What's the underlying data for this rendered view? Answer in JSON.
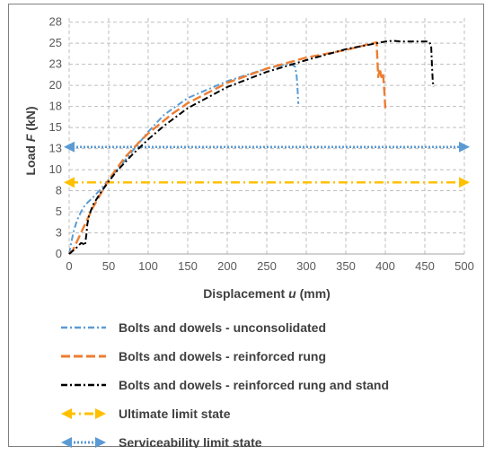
{
  "chart_data": {
    "type": "line",
    "xlabel": "Displacement u (mm)",
    "ylabel": "Load F (kN)",
    "xlabel_parts": {
      "pre": "Displacement ",
      "var": "u",
      "post": " (mm)"
    },
    "ylabel_parts": {
      "pre": "Load ",
      "var": "F",
      "post": " (kN)"
    },
    "xlim": [
      0,
      500
    ],
    "ylim": [
      0,
      28
    ],
    "x_ticks": [
      "0",
      "50",
      "100",
      "150",
      "200",
      "250",
      "300",
      "350",
      "400",
      "450",
      "500"
    ],
    "y_ticks": [
      "0",
      "3",
      "5",
      "8",
      "10",
      "13",
      "15",
      "18",
      "20",
      "23",
      "25",
      "28"
    ],
    "y_tick_values": [
      0,
      2.5,
      5,
      7.5,
      10,
      12.5,
      15,
      17.5,
      20,
      22.5,
      25,
      27.5
    ],
    "grid": true,
    "legend_position": "bottom",
    "series": [
      {
        "name": "Bolts and dowels - unconsolidated",
        "color": "#5b9bd5",
        "style": "dash-dot",
        "x": [
          0,
          3,
          6,
          10,
          15,
          20,
          30,
          40,
          50,
          60,
          80,
          100,
          120,
          150,
          200,
          250,
          280,
          286,
          288,
          289,
          290
        ],
        "y": [
          0,
          1.5,
          2.8,
          4.0,
          5.0,
          5.8,
          6.7,
          7.7,
          8.8,
          9.9,
          12.2,
          14.5,
          16.5,
          18.5,
          20.5,
          22.0,
          22.6,
          22.2,
          21.0,
          19.5,
          17.8
        ]
      },
      {
        "name": "Bolts and dowels - reinforced rung",
        "color": "#ed7d31",
        "style": "long-dash",
        "x": [
          0,
          5,
          10,
          15,
          20,
          30,
          50,
          70,
          90,
          100,
          130,
          150,
          200,
          250,
          300,
          350,
          380,
          389,
          390,
          391,
          393,
          395,
          397,
          399,
          400
        ],
        "y": [
          0,
          0.5,
          1.5,
          2.5,
          3.5,
          5.5,
          8.8,
          11.4,
          13.4,
          14.3,
          16.6,
          17.9,
          20.3,
          22.0,
          23.3,
          24.2,
          24.9,
          25.1,
          23.0,
          21.0,
          22.0,
          21.0,
          21.5,
          19.0,
          17.3
        ]
      },
      {
        "name": "Bolts and dowels - reinforced rung and stand",
        "color": "#000000",
        "style": "dash-dot",
        "x": [
          0,
          10,
          15,
          18,
          20,
          22,
          23,
          25,
          30,
          40,
          50,
          60,
          80,
          100,
          120,
          150,
          200,
          250,
          300,
          350,
          400,
          410,
          420,
          440,
          450,
          455,
          458,
          459,
          460,
          461
        ],
        "y": [
          0,
          0.8,
          1.3,
          1.2,
          1.0,
          2.5,
          3.5,
          4.5,
          5.8,
          7.3,
          8.6,
          9.8,
          11.8,
          13.6,
          15.2,
          17.3,
          19.8,
          21.6,
          23.0,
          24.3,
          25.2,
          25.3,
          25.2,
          25.2,
          25.2,
          25.2,
          24.8,
          22.5,
          20.5,
          19.8
        ]
      },
      {
        "name": "Ultimate limit state",
        "color": "#ffc000",
        "style": "dash-dot-arrow",
        "x": [
          0,
          500
        ],
        "y": [
          8.5,
          8.5
        ]
      },
      {
        "name": "Serviceability limit state",
        "color": "#5b9bd5",
        "style": "dotted-arrow",
        "x": [
          0,
          500
        ],
        "y": [
          12.7,
          12.7
        ]
      }
    ]
  }
}
